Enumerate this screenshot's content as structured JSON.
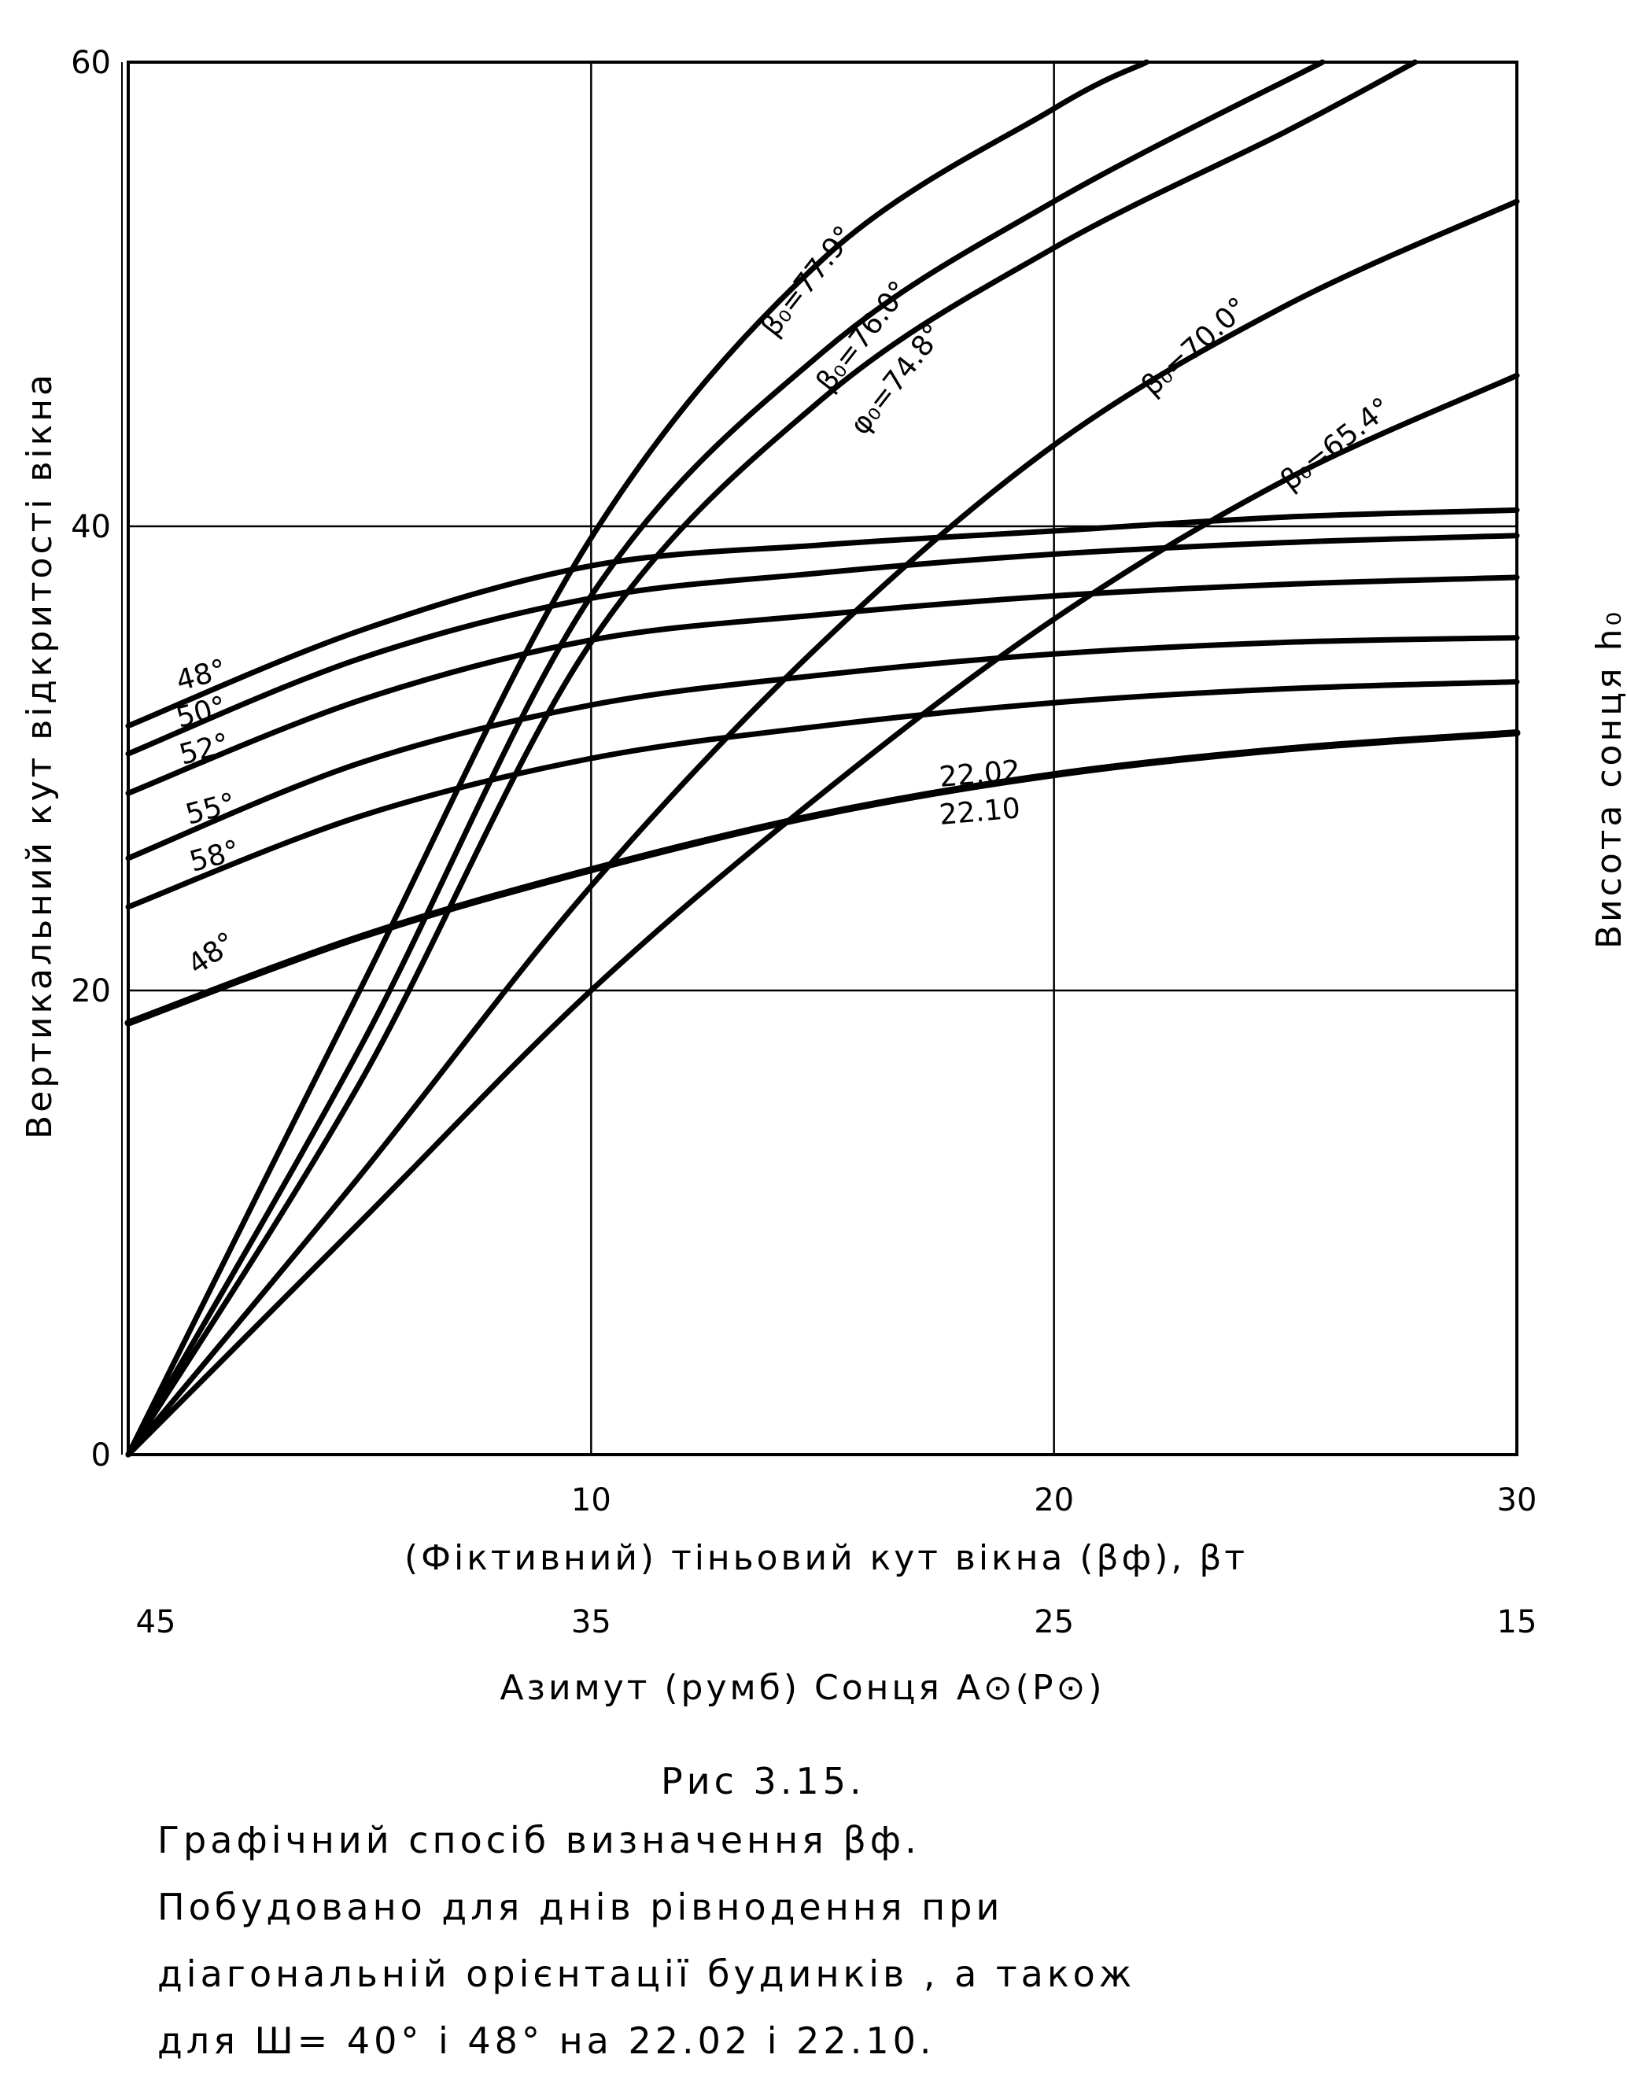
{
  "chart_data": {
    "type": "line",
    "ylabel_left": "Вертикальний кут відкритості вікна",
    "ylabel_right": "Висота сонця h₀",
    "xlabel": "(Фіктивний) тіньовий кут вікна (βф), βт",
    "xlabel_secondary": "Азимут (румб) Сонця A⊙(P⊙)",
    "xlim": [
      0,
      30
    ],
    "ylim": [
      0,
      60
    ],
    "x_ticks": [
      "10",
      "20",
      "30"
    ],
    "y_ticks": [
      "0",
      "20",
      "40",
      "60"
    ],
    "x_secondary_ticks": [
      "45",
      "35",
      "25",
      "15"
    ],
    "grid": true,
    "series": [
      {
        "name": "β₀=77.9°",
        "points": [
          [
            0,
            0
          ],
          [
            5,
            20
          ],
          [
            10,
            39.5
          ],
          [
            15,
            51.5
          ],
          [
            20,
            58
          ],
          [
            22,
            60
          ]
        ]
      },
      {
        "name": "β₀=76.0°",
        "points": [
          [
            0,
            0
          ],
          [
            5,
            17.5
          ],
          [
            10,
            37
          ],
          [
            15,
            47.5
          ],
          [
            20,
            54
          ],
          [
            25.8,
            60
          ]
        ]
      },
      {
        "name": "β₀=74.8°",
        "points": [
          [
            0,
            0
          ],
          [
            5,
            16
          ],
          [
            10,
            35
          ],
          [
            15,
            45.5
          ],
          [
            20,
            52
          ],
          [
            25,
            57
          ],
          [
            27.8,
            60
          ]
        ]
      },
      {
        "name": "β₀=70.0°",
        "points": [
          [
            0,
            0
          ],
          [
            5,
            12
          ],
          [
            10,
            24.5
          ],
          [
            15,
            35
          ],
          [
            20,
            43.5
          ],
          [
            25,
            49.5
          ],
          [
            30,
            54
          ]
        ]
      },
      {
        "name": "β₀=65.4°",
        "points": [
          [
            0,
            0
          ],
          [
            5,
            10
          ],
          [
            10,
            20
          ],
          [
            15,
            28.5
          ],
          [
            20,
            36
          ],
          [
            25,
            42
          ],
          [
            30,
            46.5
          ]
        ]
      },
      {
        "name": "48°",
        "points": [
          [
            0,
            31.4
          ],
          [
            5,
            35.5
          ],
          [
            10,
            38.3
          ],
          [
            15,
            39.2
          ],
          [
            20,
            39.8
          ],
          [
            25,
            40.4
          ],
          [
            30,
            40.7
          ]
        ]
      },
      {
        "name": "50°",
        "points": [
          [
            0,
            30.2
          ],
          [
            5,
            34.3
          ],
          [
            10,
            36.9
          ],
          [
            15,
            38
          ],
          [
            20,
            38.8
          ],
          [
            25,
            39.3
          ],
          [
            30,
            39.6
          ]
        ]
      },
      {
        "name": "52°",
        "points": [
          [
            0,
            28.5
          ],
          [
            5,
            32.5
          ],
          [
            10,
            35.1
          ],
          [
            15,
            36.2
          ],
          [
            20,
            37
          ],
          [
            25,
            37.5
          ],
          [
            30,
            37.8
          ]
        ]
      },
      {
        "name": "55°",
        "points": [
          [
            0,
            25.7
          ],
          [
            5,
            29.8
          ],
          [
            10,
            32.3
          ],
          [
            15,
            33.6
          ],
          [
            20,
            34.5
          ],
          [
            25,
            35
          ],
          [
            30,
            35.2
          ]
        ]
      },
      {
        "name": "58°",
        "points": [
          [
            0,
            23.6
          ],
          [
            5,
            27.5
          ],
          [
            10,
            30
          ],
          [
            15,
            31.4
          ],
          [
            20,
            32.4
          ],
          [
            25,
            33
          ],
          [
            30,
            33.3
          ]
        ]
      },
      {
        "name": "48° (22.02 / 22.10)",
        "points": [
          [
            0,
            18.6
          ],
          [
            5,
            22.3
          ],
          [
            10,
            25.2
          ],
          [
            15,
            27.6
          ],
          [
            20,
            29.3
          ],
          [
            25,
            30.4
          ],
          [
            30,
            31.1
          ]
        ]
      }
    ],
    "curve_labels": [
      "β₀=77.9°",
      "β₀=76.0°",
      "φ₀=74.8°",
      "β₀=70.0°",
      "β₀=65.4°",
      "48°",
      "50°",
      "52°",
      "55°",
      "58°",
      "48°",
      "22.02",
      "22.10"
    ]
  },
  "figure_title": "Рис 3.15.",
  "caption": [
    "Графічний  спосіб  визначення βф.",
    "Побудовано  для  днів  рівнодення  при",
    "діагональній  орієнтації  будинків , а також",
    "для  Ш= 40°  і 48°  на  22.02  і 22.10."
  ]
}
